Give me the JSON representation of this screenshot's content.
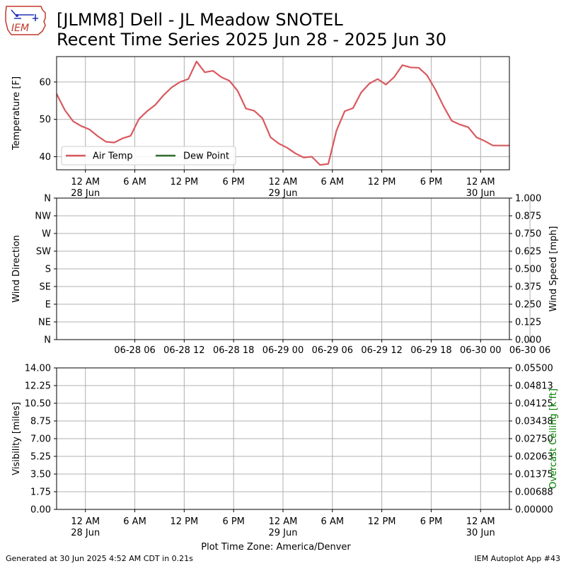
{
  "header": {
    "title_line1": "[JLMM8] Dell - JL Meadow SNOTEL",
    "title_line2": "Recent Time Series 2025 Jun 28 - 2025 Jun 30",
    "logo_text": "IEM"
  },
  "footer": {
    "generated": "Generated at 30 Jun 2025 4:52 AM CDT in 0.21s",
    "app": "IEM Autoplot App #43"
  },
  "colors": {
    "air_temp": "#d9595f",
    "dew_point": "#2e6b2e",
    "ceiling_label": "#008000",
    "grid": "#b0b0b0"
  },
  "chart_data": [
    {
      "type": "line",
      "ylabel": "Temperature [F]",
      "ylim": [
        36.5,
        66.8
      ],
      "yticks": [
        40,
        50,
        60
      ],
      "xlim": [
        -3.5,
        51.5
      ],
      "x_unit": "hours after 2025-06-28 00:00",
      "xticks": [
        {
          "hour": 0,
          "line1": "12 AM",
          "line2": "28 Jun"
        },
        {
          "hour": 6,
          "line1": "6 AM",
          "line2": ""
        },
        {
          "hour": 12,
          "line1": "12 PM",
          "line2": ""
        },
        {
          "hour": 18,
          "line1": "6 PM",
          "line2": ""
        },
        {
          "hour": 24,
          "line1": "12 AM",
          "line2": "29 Jun"
        },
        {
          "hour": 30,
          "line1": "6 AM",
          "line2": ""
        },
        {
          "hour": 36,
          "line1": "12 PM",
          "line2": ""
        },
        {
          "hour": 42,
          "line1": "6 PM",
          "line2": ""
        },
        {
          "hour": 48,
          "line1": "12 AM",
          "line2": "30 Jun"
        }
      ],
      "grid": true,
      "legend_position": "lower-left",
      "series": [
        {
          "name": "Air Temp",
          "x": [
            -3.5,
            -2.5,
            -1.5,
            -0.5,
            0.5,
            1.5,
            2.5,
            3.5,
            4.5,
            5.5,
            6.5,
            7.5,
            8.5,
            9.5,
            10.5,
            11.5,
            12.5,
            13.5,
            14.5,
            15.5,
            16.5,
            17.5,
            18.5,
            19.5,
            20.5,
            21.5,
            22.5,
            23.5,
            24.5,
            25.5,
            26.5,
            27.5,
            28.5,
            29.5,
            30.5,
            31.5,
            32.5,
            33.5,
            34.5,
            35.5,
            36.5,
            37.5,
            38.5,
            39.5,
            40.5,
            41.5,
            42.5,
            43.5,
            44.5,
            45.5,
            46.5,
            47.5,
            48.5,
            49.5,
            50.5,
            51.5
          ],
          "values": [
            56.8,
            52.5,
            49.5,
            48.2,
            47.3,
            45.5,
            44.0,
            43.8,
            44.9,
            45.6,
            50.1,
            52.2,
            53.9,
            56.5,
            58.6,
            60.0,
            60.8,
            65.5,
            62.6,
            63.0,
            61.3,
            60.3,
            57.6,
            52.9,
            52.3,
            50.3,
            45.2,
            43.5,
            42.4,
            40.9,
            39.8,
            40.0,
            37.8,
            38.1,
            47.0,
            52.2,
            53.0,
            57.2,
            59.6,
            60.8,
            59.3,
            61.3,
            64.5,
            63.9,
            63.8,
            61.8,
            58.0,
            53.5,
            49.6,
            48.6,
            47.9,
            45.2,
            44.2,
            43.0,
            43.0,
            43.0
          ]
        },
        {
          "name": "Dew Point",
          "x": [],
          "values": []
        }
      ]
    },
    {
      "type": "scatter",
      "ylabel": "Wind Direction",
      "ylabel_right": "Wind Speed [mph]",
      "y_categories": [
        "N",
        "NE",
        "E",
        "SE",
        "S",
        "SW",
        "W",
        "NW",
        "N"
      ],
      "y2lim": [
        0.0,
        1.0
      ],
      "y2ticks": [
        "0.000",
        "0.125",
        "0.250",
        "0.375",
        "0.500",
        "0.625",
        "0.750",
        "0.875",
        "1.000"
      ],
      "xlim": [
        -3.5,
        51.5
      ],
      "xticks": [
        {
          "hour": 6,
          "label": "06-28 06"
        },
        {
          "hour": 12,
          "label": "06-28 12"
        },
        {
          "hour": 18,
          "label": "06-28 18"
        },
        {
          "hour": 24,
          "label": "06-29 00"
        },
        {
          "hour": 30,
          "label": "06-29 06"
        },
        {
          "hour": 36,
          "label": "06-29 12"
        },
        {
          "hour": 42,
          "label": "06-29 18"
        },
        {
          "hour": 48,
          "label": "06-30 00"
        },
        {
          "hour": 54,
          "label": "06-30 06"
        }
      ],
      "grid": true,
      "series": []
    },
    {
      "type": "line",
      "ylabel": "Visibility [miles]",
      "ylabel_right": "Overcast Ceiling [k ft]",
      "ylim": [
        0.0,
        14.0
      ],
      "yticks": [
        "0.00",
        "1.75",
        "3.50",
        "5.25",
        "7.00",
        "8.75",
        "10.50",
        "12.25",
        "14.00"
      ],
      "y2lim": [
        0.0,
        0.055
      ],
      "y2ticks": [
        "0.00000",
        "0.00688",
        "0.01375",
        "0.02063",
        "0.02750",
        "0.03438",
        "0.04125",
        "0.04813",
        "0.05500"
      ],
      "xlim": [
        -3.5,
        51.5
      ],
      "xticks": [
        {
          "hour": 0,
          "line1": "12 AM",
          "line2": "28 Jun"
        },
        {
          "hour": 6,
          "line1": "6 AM",
          "line2": ""
        },
        {
          "hour": 12,
          "line1": "12 PM",
          "line2": ""
        },
        {
          "hour": 18,
          "line1": "6 PM",
          "line2": ""
        },
        {
          "hour": 24,
          "line1": "12 AM",
          "line2": "29 Jun"
        },
        {
          "hour": 30,
          "line1": "6 AM",
          "line2": ""
        },
        {
          "hour": 36,
          "line1": "12 PM",
          "line2": ""
        },
        {
          "hour": 42,
          "line1": "6 PM",
          "line2": ""
        },
        {
          "hour": 48,
          "line1": "12 AM",
          "line2": "30 Jun"
        }
      ],
      "xlabel": "Plot Time Zone: America/Denver",
      "grid": true,
      "series": []
    }
  ]
}
